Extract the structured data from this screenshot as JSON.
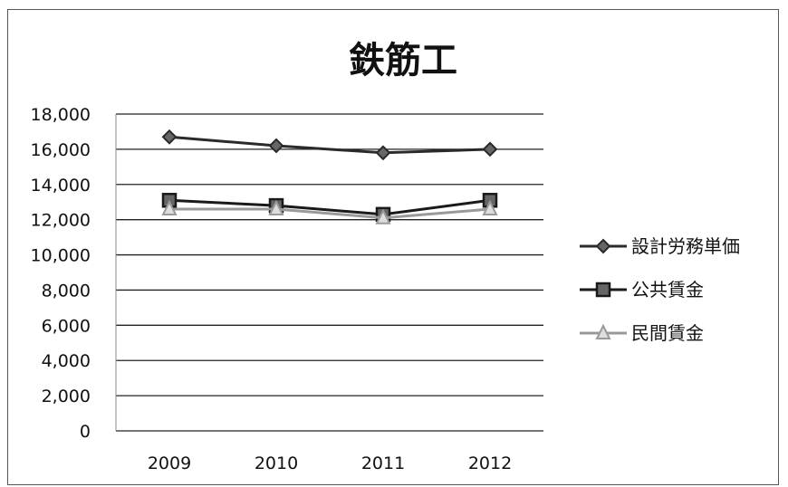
{
  "chart_data": {
    "type": "line",
    "title": "鉄筋工",
    "xlabel": "",
    "ylabel": "",
    "categories": [
      "2009",
      "2010",
      "2011",
      "2012"
    ],
    "ylim": [
      0,
      18000
    ],
    "yticks": [
      "0",
      "2,000",
      "4,000",
      "6,000",
      "8,000",
      "10,000",
      "12,000",
      "14,000",
      "16,000",
      "18,000"
    ],
    "grid": true,
    "legend_position": "right",
    "series": [
      {
        "name": "設計労務単価",
        "values": [
          16700,
          16200,
          15800,
          16000
        ],
        "color": "#2a2a2a",
        "marker": "diamond"
      },
      {
        "name": "公共賃金",
        "values": [
          13100,
          12800,
          12300,
          13100
        ],
        "color": "#1a1a1a",
        "marker": "square"
      },
      {
        "name": "民間賃金",
        "values": [
          12600,
          12600,
          12100,
          12600
        ],
        "color": "#9a9a9a",
        "marker": "triangle"
      }
    ]
  }
}
